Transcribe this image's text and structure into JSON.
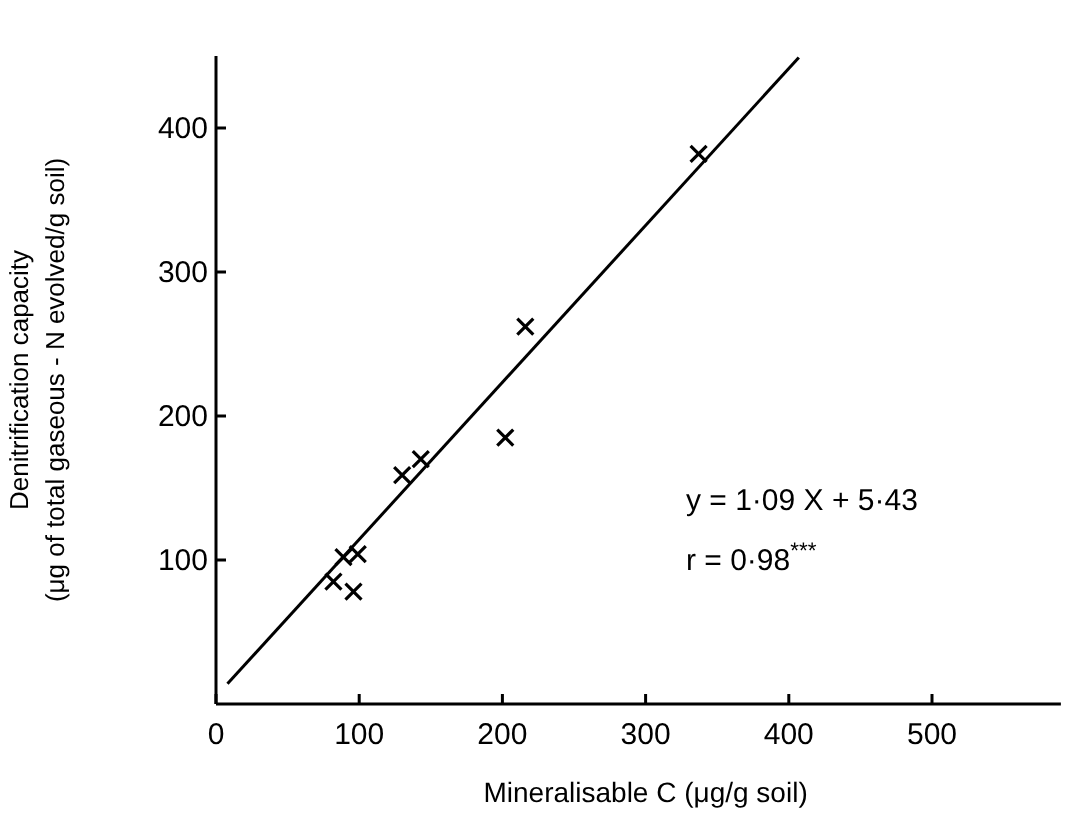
{
  "chart_data": {
    "type": "scatter",
    "xlabel": "Mineralisable C (μg/g soil)",
    "ylabel": "Denitrification capacity\n(μg of total gaseous - N evolved/g soil)",
    "xlim": [
      0,
      590
    ],
    "ylim": [
      0,
      450
    ],
    "xticks": [
      0,
      100,
      200,
      300,
      400,
      500
    ],
    "yticks": [
      100,
      200,
      300,
      400
    ],
    "grid": false,
    "series": [
      {
        "color": "#000000",
        "marker": "cross",
        "x": [
          82,
          89,
          99,
          96,
          130,
          143,
          202,
          216,
          337
        ],
        "values": [
          85,
          102,
          104,
          78,
          159,
          170,
          185,
          262,
          382
        ]
      },
      {
        "type": "line",
        "color": "#000000",
        "marker": "none",
        "line_style": "solid",
        "x": [
          8,
          407
        ],
        "values": [
          14,
          449
        ]
      }
    ],
    "annotations": [
      "y = 1·09 X + 5·43",
      "r = 0·98$^{***}$"
    ]
  }
}
